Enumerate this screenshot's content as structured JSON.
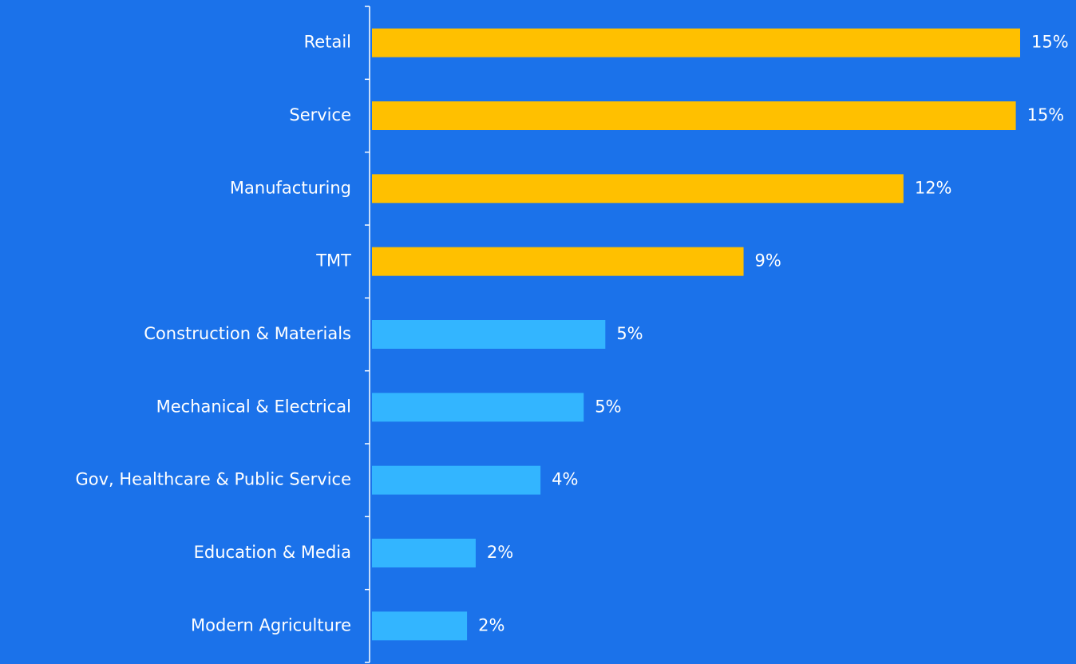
{
  "chart_data": {
    "type": "bar",
    "orientation": "horizontal",
    "categories": [
      "Retail",
      "Service",
      "Manufacturing",
      "TMT",
      "Construction & Materials",
      "Mechanical & Electrical",
      "Gov, Healthcare & Public Service",
      "Education & Media",
      "Modern Agriculture"
    ],
    "values": [
      15.0,
      14.9,
      12.3,
      8.6,
      5.4,
      4.9,
      3.9,
      2.4,
      2.2
    ],
    "value_labels": [
      "15%",
      "15%",
      "12%",
      "9%",
      "5%",
      "5%",
      "4%",
      "2%",
      "2%"
    ],
    "colors": [
      "#ffc000",
      "#ffc000",
      "#ffc000",
      "#ffc000",
      "#33b5ff",
      "#33b5ff",
      "#33b5ff",
      "#33b5ff",
      "#33b5ff"
    ]
  }
}
